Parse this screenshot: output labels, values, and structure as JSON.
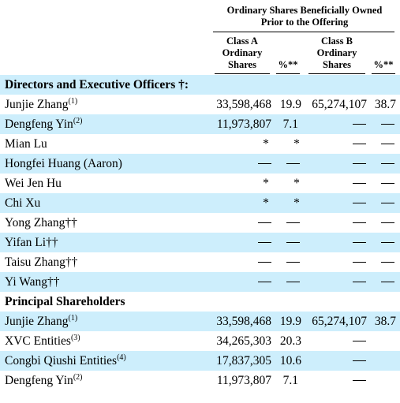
{
  "header": {
    "line1": "Ordinary Shares Beneficially Owned",
    "line2": "Prior to the Offering",
    "class_a": [
      "Class A",
      "Ordinary",
      "Shares"
    ],
    "pct_a": "%**",
    "class_b": [
      "Class B",
      "Ordinary",
      "Shares"
    ],
    "pct_b": "%**"
  },
  "glyphs": {
    "star": "*"
  },
  "sections": {
    "directors": "Directors and Executive Officers †:",
    "principal": "Principal Shareholders"
  },
  "rows": {
    "r1": {
      "name": "Junjie Zhang",
      "sup": "(1)",
      "a": "33,598,468",
      "pa": "19.9",
      "b": "65,274,107",
      "pb": "38.7"
    },
    "r2": {
      "name": "Dengfeng Yin",
      "sup": "(2)",
      "a": "11,973,807",
      "pa": "7.1"
    },
    "r3": {
      "name": "Mian Lu"
    },
    "r4": {
      "name": "Hongfei Huang (Aaron)"
    },
    "r5": {
      "name": "Wei Jen Hu"
    },
    "r6": {
      "name": "Chi Xu"
    },
    "r7": {
      "name": "Yong Zhang††"
    },
    "r8": {
      "name": "Yifan Li††"
    },
    "r9": {
      "name": "Taisu Zhang††"
    },
    "r10": {
      "name": "Yi Wang††"
    },
    "r11": {
      "name": "Junjie Zhang",
      "sup": "(1)",
      "a": "33,598,468",
      "pa": "19.9",
      "b": "65,274,107",
      "pb": "38.7"
    },
    "r12": {
      "name": "XVC Entities",
      "sup": "(3)",
      "a": "34,265,303",
      "pa": "20.3"
    },
    "r13": {
      "name": "Congbi Qiushi Entities",
      "sup": "(4)",
      "a": "17,837,305",
      "pa": "10.6"
    },
    "r14": {
      "name": "Dengfeng Yin",
      "sup": "(2)",
      "a": "11,973,807",
      "pa": "7.1"
    }
  }
}
